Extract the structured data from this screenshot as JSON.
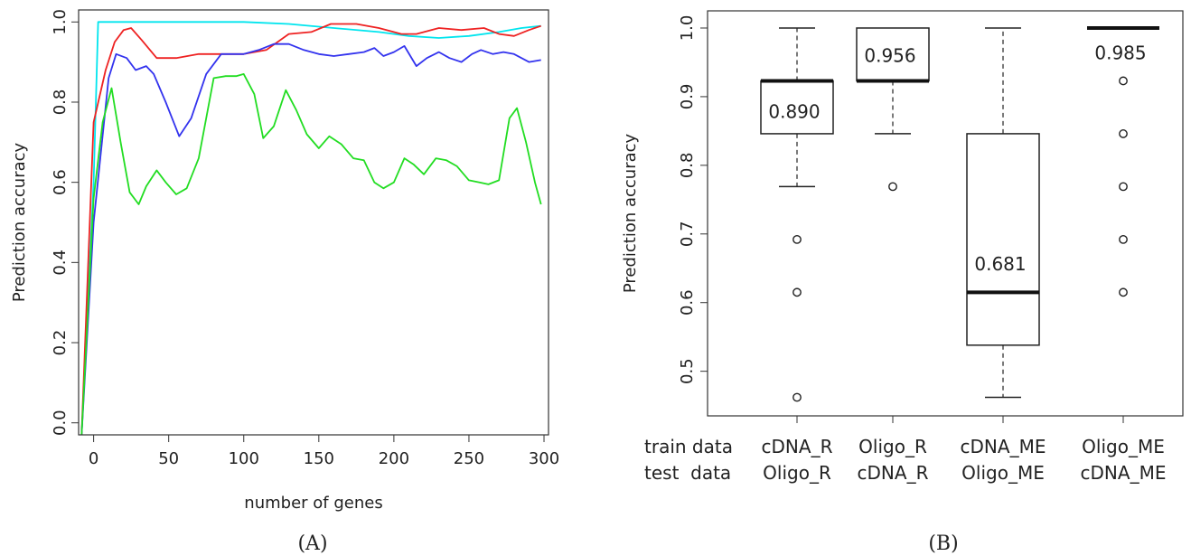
{
  "chart_data": [
    {
      "type": "line",
      "panel_label": "(A)",
      "xlabel": "number of genes",
      "ylabel": "Prediction accuracy",
      "xlim": [
        -10,
        303
      ],
      "ylim": [
        -0.03,
        1.03
      ],
      "xticks": [
        0,
        50,
        100,
        150,
        200,
        250,
        300
      ],
      "yticks": [
        "0.0",
        "0.2",
        "0.4",
        "0.6",
        "0.8",
        "1.0"
      ],
      "series": [
        {
          "color": "#00e5ee",
          "points": [
            [
              -8,
              -0.03
            ],
            [
              0,
              0.6
            ],
            [
              3,
              1.0
            ],
            [
              60,
              1.0
            ],
            [
              100,
              1.0
            ],
            [
              130,
              0.995
            ],
            [
              160,
              0.985
            ],
            [
              190,
              0.975
            ],
            [
              210,
              0.965
            ],
            [
              230,
              0.96
            ],
            [
              250,
              0.965
            ],
            [
              270,
              0.975
            ],
            [
              285,
              0.985
            ],
            [
              298,
              0.99
            ]
          ]
        },
        {
          "color": "#ee2222",
          "points": [
            [
              -8,
              -0.03
            ],
            [
              0,
              0.75
            ],
            [
              8,
              0.88
            ],
            [
              14,
              0.95
            ],
            [
              20,
              0.98
            ],
            [
              25,
              0.985
            ],
            [
              32,
              0.955
            ],
            [
              42,
              0.91
            ],
            [
              55,
              0.91
            ],
            [
              70,
              0.92
            ],
            [
              85,
              0.92
            ],
            [
              100,
              0.92
            ],
            [
              115,
              0.93
            ],
            [
              130,
              0.97
            ],
            [
              145,
              0.975
            ],
            [
              158,
              0.995
            ],
            [
              175,
              0.995
            ],
            [
              190,
              0.985
            ],
            [
              205,
              0.97
            ],
            [
              215,
              0.97
            ],
            [
              230,
              0.985
            ],
            [
              245,
              0.98
            ],
            [
              260,
              0.985
            ],
            [
              270,
              0.97
            ],
            [
              280,
              0.965
            ],
            [
              290,
              0.98
            ],
            [
              298,
              0.99
            ]
          ]
        },
        {
          "color": "#3333ee",
          "points": [
            [
              -8,
              -0.03
            ],
            [
              0,
              0.5
            ],
            [
              10,
              0.86
            ],
            [
              15,
              0.92
            ],
            [
              22,
              0.91
            ],
            [
              28,
              0.88
            ],
            [
              35,
              0.89
            ],
            [
              40,
              0.87
            ],
            [
              48,
              0.8
            ],
            [
              57,
              0.715
            ],
            [
              65,
              0.76
            ],
            [
              75,
              0.87
            ],
            [
              85,
              0.92
            ],
            [
              100,
              0.92
            ],
            [
              110,
              0.93
            ],
            [
              120,
              0.945
            ],
            [
              130,
              0.945
            ],
            [
              140,
              0.93
            ],
            [
              150,
              0.92
            ],
            [
              160,
              0.915
            ],
            [
              170,
              0.92
            ],
            [
              180,
              0.925
            ],
            [
              187,
              0.935
            ],
            [
              193,
              0.915
            ],
            [
              200,
              0.925
            ],
            [
              207,
              0.94
            ],
            [
              215,
              0.89
            ],
            [
              222,
              0.91
            ],
            [
              230,
              0.925
            ],
            [
              237,
              0.91
            ],
            [
              245,
              0.9
            ],
            [
              252,
              0.92
            ],
            [
              258,
              0.93
            ],
            [
              266,
              0.92
            ],
            [
              273,
              0.925
            ],
            [
              280,
              0.92
            ],
            [
              290,
              0.9
            ],
            [
              298,
              0.905
            ]
          ]
        },
        {
          "color": "#22dd22",
          "points": [
            [
              -8,
              -0.03
            ],
            [
              0,
              0.56
            ],
            [
              6,
              0.75
            ],
            [
              12,
              0.835
            ],
            [
              18,
              0.7
            ],
            [
              24,
              0.575
            ],
            [
              30,
              0.545
            ],
            [
              35,
              0.59
            ],
            [
              42,
              0.63
            ],
            [
              48,
              0.6
            ],
            [
              55,
              0.57
            ],
            [
              62,
              0.585
            ],
            [
              70,
              0.66
            ],
            [
              80,
              0.86
            ],
            [
              88,
              0.865
            ],
            [
              95,
              0.865
            ],
            [
              100,
              0.87
            ],
            [
              107,
              0.82
            ],
            [
              113,
              0.71
            ],
            [
              120,
              0.74
            ],
            [
              128,
              0.83
            ],
            [
              135,
              0.78
            ],
            [
              142,
              0.72
            ],
            [
              150,
              0.685
            ],
            [
              157,
              0.715
            ],
            [
              165,
              0.695
            ],
            [
              173,
              0.66
            ],
            [
              180,
              0.655
            ],
            [
              187,
              0.6
            ],
            [
              193,
              0.585
            ],
            [
              200,
              0.6
            ],
            [
              207,
              0.66
            ],
            [
              213,
              0.645
            ],
            [
              220,
              0.62
            ],
            [
              228,
              0.66
            ],
            [
              235,
              0.655
            ],
            [
              242,
              0.64
            ],
            [
              250,
              0.605
            ],
            [
              257,
              0.6
            ],
            [
              263,
              0.595
            ],
            [
              270,
              0.605
            ],
            [
              277,
              0.76
            ],
            [
              282,
              0.785
            ],
            [
              288,
              0.7
            ],
            [
              294,
              0.6
            ],
            [
              298,
              0.545
            ]
          ]
        }
      ]
    },
    {
      "type": "box",
      "panel_label": "(B)",
      "xlabel": "",
      "ylabel": "Prediction accuracy",
      "ylim": [
        0.435,
        1.025
      ],
      "yticks": [
        "0.5",
        "0.6",
        "0.7",
        "0.8",
        "0.9",
        "1.0"
      ],
      "row_labels": [
        "train data",
        "test  data"
      ],
      "categories": [
        {
          "train": "cDNA_R",
          "test": "Oligo_R",
          "whisker_low": 0.769,
          "q1": 0.846,
          "median": 0.923,
          "q3": 0.923,
          "whisker_high": 1.0,
          "outliers": [
            0.692,
            0.615,
            0.462
          ],
          "mean_label": "0.890",
          "mean_label_value": 0.878
        },
        {
          "train": "Oligo_R",
          "test": "cDNA_R",
          "whisker_low": 0.846,
          "q1": 0.923,
          "median": 0.923,
          "q3": 1.0,
          "whisker_high": 1.0,
          "outliers": [
            0.769
          ],
          "mean_label": "0.956",
          "mean_label_value": 0.96
        },
        {
          "train": "cDNA_ME",
          "test": "Oligo_ME",
          "whisker_low": 0.462,
          "q1": 0.538,
          "median": 0.615,
          "q3": 0.846,
          "whisker_high": 1.0,
          "outliers": [],
          "mean_label": "0.681",
          "mean_label_value": 0.656
        },
        {
          "train": "Oligo_ME",
          "test": "cDNA_ME",
          "whisker_low": 1.0,
          "q1": 1.0,
          "median": 1.0,
          "q3": 1.0,
          "whisker_high": 1.0,
          "outliers": [
            0.923,
            0.846,
            0.769,
            0.692,
            0.615
          ],
          "mean_label": "0.985",
          "mean_label_value": 0.964
        }
      ]
    }
  ]
}
